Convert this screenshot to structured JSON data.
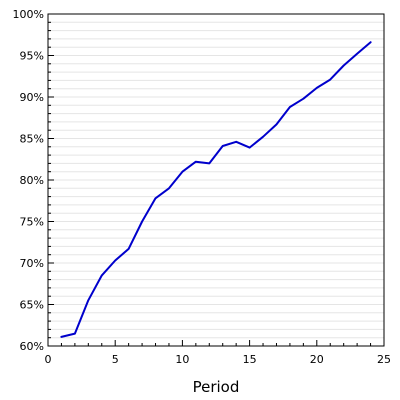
{
  "chart_data": {
    "type": "line",
    "title": "",
    "xlabel": "Period",
    "ylabel": "",
    "xlim": [
      0,
      25
    ],
    "ylim": [
      0.6,
      1.0
    ],
    "x_ticks": [
      0,
      5,
      10,
      15,
      20,
      25
    ],
    "x_tick_labels": [
      "0",
      "5",
      "10",
      "15",
      "20",
      "25"
    ],
    "y_ticks": [
      0.6,
      0.65,
      0.7,
      0.75,
      0.8,
      0.85,
      0.9,
      0.95,
      1.0
    ],
    "y_tick_labels": [
      "60%",
      "65%",
      "70%",
      "75%",
      "80%",
      "85%",
      "90%",
      "95%",
      "100%"
    ],
    "y_minor_step": 0.01,
    "grid": "horizontal",
    "legend": "none",
    "colors": {
      "line": "#0000cc",
      "grid": "#e5e5e5",
      "axes": "#000000"
    },
    "series": [
      {
        "x": [
          1,
          2,
          3,
          4,
          5,
          6,
          7,
          8,
          9,
          10,
          11,
          12,
          13,
          14,
          15,
          16,
          17,
          18,
          19,
          20,
          21,
          22,
          23,
          24
        ],
        "y": [
          0.611,
          0.615,
          0.655,
          0.685,
          0.703,
          0.717,
          0.75,
          0.778,
          0.79,
          0.81,
          0.822,
          0.82,
          0.841,
          0.846,
          0.839,
          0.852,
          0.867,
          0.888,
          0.898,
          0.911,
          0.921,
          0.938,
          0.952,
          0.966
        ]
      }
    ]
  }
}
